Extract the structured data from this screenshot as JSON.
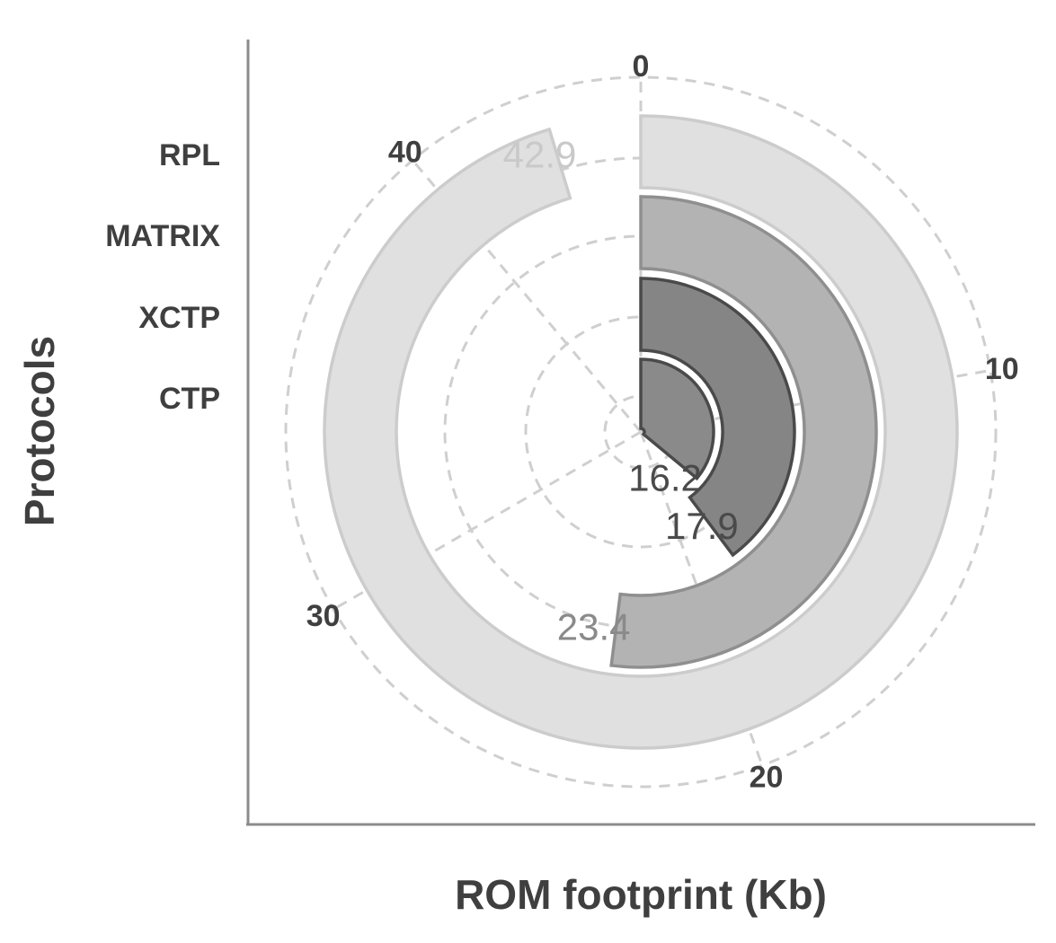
{
  "chart_data": {
    "type": "bar",
    "subtype": "radial-bar",
    "title": "",
    "xlabel": "ROM footprint (Kb)",
    "ylabel": "Protocols",
    "angular_axis": {
      "min": 0,
      "max": 45,
      "ticks": [
        0,
        10,
        20,
        30,
        40
      ],
      "tick_labels": [
        "0",
        "10",
        "20",
        "30",
        "40"
      ],
      "direction": "clockwise",
      "start": "top"
    },
    "grid": true,
    "categories": [
      "RPL",
      "MATRIX",
      "XCTP",
      "CTP"
    ],
    "values": [
      42.9,
      23.4,
      17.9,
      16.2
    ],
    "value_labels": [
      "42.9",
      "23.4",
      "17.9",
      "16.2"
    ],
    "colors": {
      "RPL": {
        "fill": "#e0e0e0",
        "stroke": "#cccccc",
        "label": "#c9c9c9"
      },
      "MATRIX": {
        "fill": "#b3b3b3",
        "stroke": "#8f8f8f",
        "label": "#8a8a8a"
      },
      "XCTP": {
        "fill": "#858585",
        "stroke": "#4a4a4a",
        "label": "#4a4a4a"
      },
      "CTP": {
        "fill": "#8a8a8a",
        "stroke": "#4a4a4a",
        "label": "#4a4a4a"
      }
    }
  }
}
